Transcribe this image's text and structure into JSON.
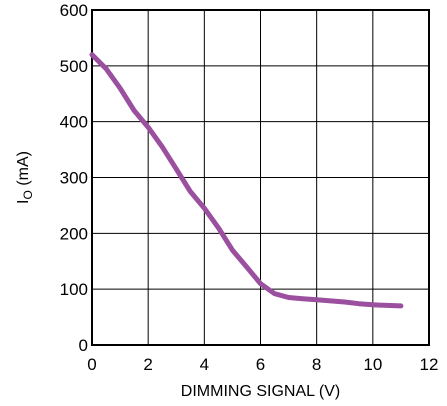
{
  "chart_data": {
    "type": "line",
    "title": "",
    "xlabel": "DIMMING SIGNAL (V)",
    "ylabel_main": "I",
    "ylabel_sub": "O",
    "ylabel_unit": " (mA)",
    "xlim": [
      0,
      12
    ],
    "ylim": [
      0,
      600
    ],
    "xticks": [
      0,
      2,
      4,
      6,
      8,
      10,
      12
    ],
    "yticks": [
      0,
      100,
      200,
      300,
      400,
      500,
      600
    ],
    "grid": true,
    "line_color": "#9b4f9f",
    "series": [
      {
        "x": [
          0,
          0.5,
          1.0,
          1.5,
          2.0,
          2.5,
          3.0,
          3.5,
          4.0,
          4.5,
          5.0,
          5.5,
          6.0,
          6.5,
          7.0,
          7.5,
          8.0,
          8.5,
          9.0,
          9.5,
          10.0,
          10.5,
          11.0
        ],
        "y": [
          520,
          495,
          460,
          420,
          390,
          355,
          315,
          275,
          245,
          210,
          170,
          140,
          110,
          92,
          85,
          83,
          81,
          79,
          77,
          74,
          72,
          71,
          70
        ]
      }
    ]
  }
}
